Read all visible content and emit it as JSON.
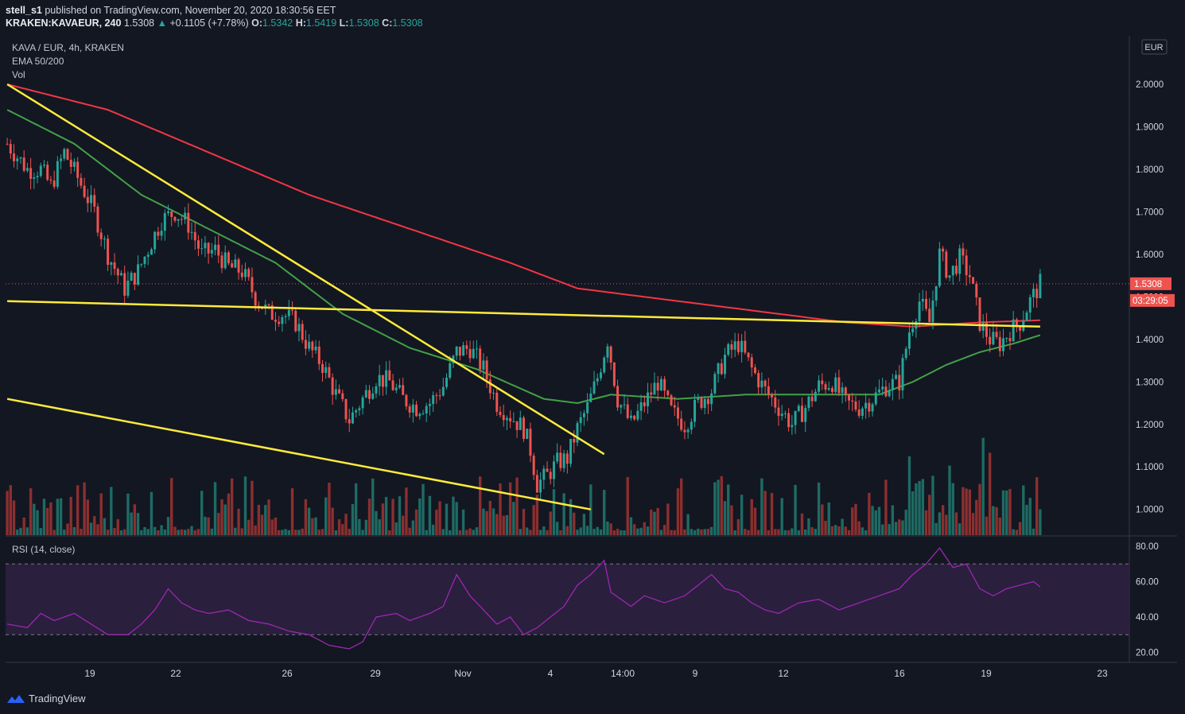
{
  "header": {
    "publisher": "stell_s1",
    "published_text": "published on TradingView.com, November 20, 2020 18:30:56 EET",
    "symbol": "KRAKEN:KAVAEUR, 240",
    "price": "1.5308",
    "change": "+0.1105 (+7.78%)",
    "ohlc": [
      {
        "k": "O:",
        "v": "1.5342"
      },
      {
        "k": "H:",
        "v": "1.5419"
      },
      {
        "k": "L:",
        "v": "1.5308"
      },
      {
        "k": "C:",
        "v": "1.5308"
      }
    ]
  },
  "legend": {
    "title": "KAVA / EUR, 4h, KRAKEN",
    "ema": "EMA 50/200",
    "vol": "Vol",
    "rsi": "RSI (14, close)"
  },
  "price_axis": {
    "currency": "EUR",
    "last_price": "1.5308",
    "countdown": "03:29:05"
  },
  "footer": {
    "brand": "TradingView"
  },
  "colors": {
    "background": "#131722",
    "up": "#26a69a",
    "down": "#ef5350",
    "ema50": "#43a047",
    "ema200": "#f23645",
    "trendline": "#ffeb3b",
    "rsi": "#9c27b0"
  },
  "chart_data": [
    {
      "type": "candlestick",
      "title": "KAVA / EUR, 4h, KRAKEN",
      "ylim": [
        0.92,
        2.1
      ],
      "y_ticks": [
        "1.0000",
        "1.1000",
        "1.2000",
        "1.3000",
        "1.4000",
        "1.5000",
        "1.6000",
        "1.7000",
        "1.8000",
        "1.9000",
        "2.0000"
      ],
      "x_ticks": [
        "19",
        "22",
        "26",
        "29",
        "Nov",
        "4",
        "14:00",
        "9",
        "12",
        "16",
        "19",
        "23"
      ],
      "price_path": [
        [
          0,
          1.86
        ],
        [
          6,
          1.8
        ],
        [
          10,
          1.8
        ],
        [
          13,
          1.76
        ],
        [
          17,
          1.84
        ],
        [
          21,
          1.78
        ],
        [
          26,
          1.7
        ],
        [
          30,
          1.6
        ],
        [
          35,
          1.52
        ],
        [
          39,
          1.56
        ],
        [
          43,
          1.63
        ],
        [
          46,
          1.68
        ],
        [
          50,
          1.7
        ],
        [
          54,
          1.67
        ],
        [
          58,
          1.6
        ],
        [
          62,
          1.61
        ],
        [
          66,
          1.57
        ],
        [
          70,
          1.56
        ],
        [
          74,
          1.5
        ],
        [
          78,
          1.46
        ],
        [
          82,
          1.46
        ],
        [
          86,
          1.44
        ],
        [
          90,
          1.38
        ],
        [
          94,
          1.34
        ],
        [
          98,
          1.27
        ],
        [
          102,
          1.21
        ],
        [
          106,
          1.26
        ],
        [
          110,
          1.31
        ],
        [
          114,
          1.3
        ],
        [
          118,
          1.26
        ],
        [
          122,
          1.24
        ],
        [
          126,
          1.25
        ],
        [
          130,
          1.29
        ],
        [
          134,
          1.37
        ],
        [
          138,
          1.38
        ],
        [
          142,
          1.33
        ],
        [
          146,
          1.25
        ],
        [
          150,
          1.22
        ],
        [
          154,
          1.19
        ],
        [
          156,
          1.14
        ],
        [
          158,
          1.06
        ],
        [
          161,
          1.08
        ],
        [
          164,
          1.11
        ],
        [
          167,
          1.12
        ],
        [
          170,
          1.19
        ],
        [
          173,
          1.24
        ],
        [
          176,
          1.31
        ],
        [
          179,
          1.4
        ],
        [
          182,
          1.26
        ],
        [
          186,
          1.2
        ],
        [
          190,
          1.25
        ],
        [
          194,
          1.3
        ],
        [
          198,
          1.23
        ],
        [
          202,
          1.2
        ],
        [
          206,
          1.25
        ],
        [
          210,
          1.28
        ],
        [
          214,
          1.36
        ],
        [
          218,
          1.39
        ],
        [
          222,
          1.33
        ],
        [
          226,
          1.28
        ],
        [
          230,
          1.24
        ],
        [
          234,
          1.2
        ],
        [
          238,
          1.24
        ],
        [
          242,
          1.29
        ],
        [
          246,
          1.3
        ],
        [
          250,
          1.25
        ],
        [
          254,
          1.24
        ],
        [
          258,
          1.26
        ],
        [
          262,
          1.29
        ],
        [
          266,
          1.3
        ],
        [
          269,
          1.42
        ],
        [
          272,
          1.49
        ],
        [
          275,
          1.44
        ],
        [
          278,
          1.6
        ],
        [
          281,
          1.55
        ],
        [
          284,
          1.59
        ],
        [
          287,
          1.55
        ],
        [
          290,
          1.44
        ],
        [
          293,
          1.4
        ],
        [
          296,
          1.39
        ],
        [
          299,
          1.42
        ],
        [
          302,
          1.44
        ],
        [
          305,
          1.49
        ],
        [
          308,
          1.53
        ]
      ],
      "ema50": [
        [
          0,
          1.94
        ],
        [
          20,
          1.86
        ],
        [
          40,
          1.74
        ],
        [
          60,
          1.66
        ],
        [
          80,
          1.58
        ],
        [
          100,
          1.46
        ],
        [
          120,
          1.38
        ],
        [
          140,
          1.33
        ],
        [
          160,
          1.26
        ],
        [
          170,
          1.25
        ],
        [
          180,
          1.27
        ],
        [
          200,
          1.26
        ],
        [
          220,
          1.27
        ],
        [
          240,
          1.27
        ],
        [
          260,
          1.27
        ],
        [
          270,
          1.3
        ],
        [
          280,
          1.34
        ],
        [
          290,
          1.37
        ],
        [
          300,
          1.39
        ],
        [
          308,
          1.41
        ]
      ],
      "ema200": [
        [
          0,
          2.0
        ],
        [
          30,
          1.94
        ],
        [
          60,
          1.84
        ],
        [
          90,
          1.74
        ],
        [
          120,
          1.66
        ],
        [
          150,
          1.58
        ],
        [
          170,
          1.52
        ],
        [
          190,
          1.5
        ],
        [
          210,
          1.48
        ],
        [
          230,
          1.46
        ],
        [
          250,
          1.44
        ],
        [
          270,
          1.43
        ],
        [
          290,
          1.44
        ],
        [
          308,
          1.445
        ]
      ],
      "trendlines": [
        {
          "from": [
            0,
            2.0
          ],
          "to": [
            178,
            1.13
          ]
        },
        {
          "from": [
            0,
            1.49
          ],
          "to": [
            308,
            1.43
          ]
        },
        {
          "from": [
            0,
            1.26
          ],
          "to": [
            174,
            1.0
          ]
        }
      ],
      "last_price": 1.5308
    },
    {
      "type": "line",
      "title": "RSI (14, close)",
      "ylim": [
        15,
        85
      ],
      "y_ticks": [
        "20.00",
        "40.00",
        "60.00",
        "80.00"
      ],
      "bands": [
        30,
        70
      ],
      "values": [
        [
          0,
          36
        ],
        [
          6,
          34
        ],
        [
          10,
          42
        ],
        [
          14,
          38
        ],
        [
          20,
          42
        ],
        [
          30,
          30
        ],
        [
          36,
          30
        ],
        [
          40,
          36
        ],
        [
          44,
          44
        ],
        [
          48,
          56
        ],
        [
          52,
          48
        ],
        [
          56,
          44
        ],
        [
          60,
          42
        ],
        [
          66,
          44
        ],
        [
          72,
          38
        ],
        [
          78,
          36
        ],
        [
          84,
          32
        ],
        [
          90,
          30
        ],
        [
          96,
          24
        ],
        [
          102,
          22
        ],
        [
          106,
          26
        ],
        [
          110,
          40
        ],
        [
          116,
          42
        ],
        [
          120,
          38
        ],
        [
          126,
          42
        ],
        [
          130,
          46
        ],
        [
          134,
          64
        ],
        [
          138,
          52
        ],
        [
          142,
          44
        ],
        [
          146,
          36
        ],
        [
          150,
          40
        ],
        [
          154,
          30
        ],
        [
          158,
          34
        ],
        [
          162,
          40
        ],
        [
          166,
          46
        ],
        [
          170,
          58
        ],
        [
          174,
          64
        ],
        [
          178,
          72
        ],
        [
          180,
          54
        ],
        [
          186,
          46
        ],
        [
          190,
          52
        ],
        [
          196,
          48
        ],
        [
          202,
          52
        ],
        [
          206,
          58
        ],
        [
          210,
          64
        ],
        [
          214,
          56
        ],
        [
          218,
          54
        ],
        [
          222,
          48
        ],
        [
          226,
          44
        ],
        [
          230,
          42
        ],
        [
          236,
          48
        ],
        [
          242,
          50
        ],
        [
          248,
          44
        ],
        [
          254,
          48
        ],
        [
          260,
          52
        ],
        [
          266,
          56
        ],
        [
          270,
          64
        ],
        [
          274,
          70
        ],
        [
          278,
          79
        ],
        [
          282,
          68
        ],
        [
          286,
          70
        ],
        [
          290,
          56
        ],
        [
          294,
          52
        ],
        [
          298,
          56
        ],
        [
          302,
          58
        ],
        [
          306,
          60
        ],
        [
          308,
          57
        ]
      ]
    }
  ]
}
